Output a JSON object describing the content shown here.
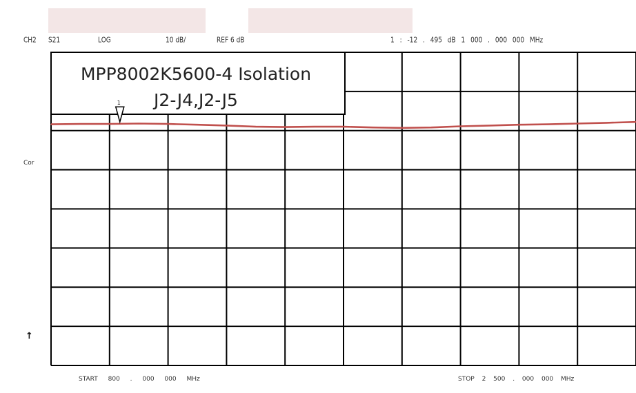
{
  "header": {
    "channel": "CH2",
    "param": "S21",
    "format": "LOG",
    "scale": "10 dB/",
    "ref": "REF 6 dB",
    "marker_readout": "1 : -12 . 495 dB 1 000 . 000 000 MHz"
  },
  "side_labels": {
    "cor": "Cor",
    "arrow": "↑"
  },
  "footer": {
    "start": "START 800 . 000 000 MHz",
    "stop": "STOP 2 500 . 000 000 MHz"
  },
  "chart_data": {
    "type": "line",
    "title": "MPP8002K5600-4 Isolation",
    "subtitle": "J2-J4,J2-J5",
    "xlabel": "",
    "ylabel": "",
    "x_unit": "MHz",
    "x_start": 800,
    "x_stop": 2500,
    "xlim": [
      800,
      2500
    ],
    "ref_level_db": 6,
    "scale_db_per_div": 10,
    "ylim": [
      -74,
      6
    ],
    "grid": true,
    "h_divisions": 10,
    "v_divisions": 8,
    "series_color": "#c0504d",
    "marker": {
      "label": "1",
      "x": 1000,
      "y": -12.495
    },
    "series": [
      {
        "x": [
          800,
          885,
          970,
          1055,
          1140,
          1225,
          1310,
          1395,
          1480,
          1565,
          1650,
          1735,
          1820,
          1905,
          1990,
          2075,
          2160,
          2245,
          2330,
          2415,
          2500
        ],
        "values": [
          -12.4,
          -12.3,
          -12.3,
          -12.2,
          -12.3,
          -12.5,
          -12.7,
          -13.0,
          -13.1,
          -13.0,
          -13.0,
          -13.2,
          -13.3,
          -13.2,
          -12.9,
          -12.7,
          -12.5,
          -12.4,
          -12.2,
          -12.0,
          -11.8
        ]
      }
    ]
  }
}
